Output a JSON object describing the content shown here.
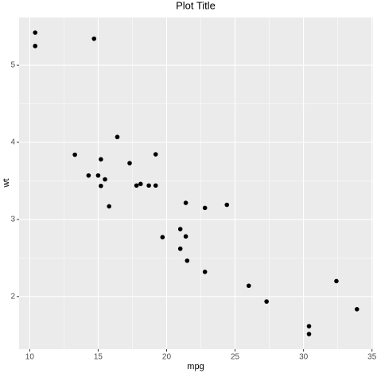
{
  "chart_data": {
    "type": "scatter",
    "title": "Plot Title",
    "x_label": "mpg",
    "y_label": "wt",
    "x": [
      21,
      21,
      22.8,
      21.4,
      18.7,
      18.1,
      14.3,
      24.4,
      22.8,
      19.2,
      17.8,
      16.4,
      17.3,
      15.2,
      10.4,
      10.4,
      14.7,
      32.4,
      30.4,
      33.9,
      21.5,
      15.5,
      15.2,
      13.3,
      19.2,
      27.3,
      26,
      30.4,
      15.8,
      19.7,
      15,
      21.4
    ],
    "values": [
      2.62,
      2.875,
      2.32,
      3.215,
      3.44,
      3.46,
      3.57,
      3.19,
      3.15,
      3.44,
      3.44,
      4.07,
      3.73,
      3.78,
      5.25,
      5.424,
      5.345,
      2.2,
      1.615,
      1.835,
      2.465,
      3.52,
      3.435,
      3.84,
      3.845,
      1.935,
      2.14,
      1.513,
      3.17,
      2.77,
      3.57,
      2.78
    ],
    "color": "#000000",
    "xlim": [
      9.225,
      35.075
    ],
    "ylim": [
      1.317,
      5.62
    ],
    "xticks": [
      10,
      15,
      20,
      25,
      30,
      35
    ],
    "yticks": [
      2,
      3,
      4,
      5
    ],
    "grid": true
  }
}
